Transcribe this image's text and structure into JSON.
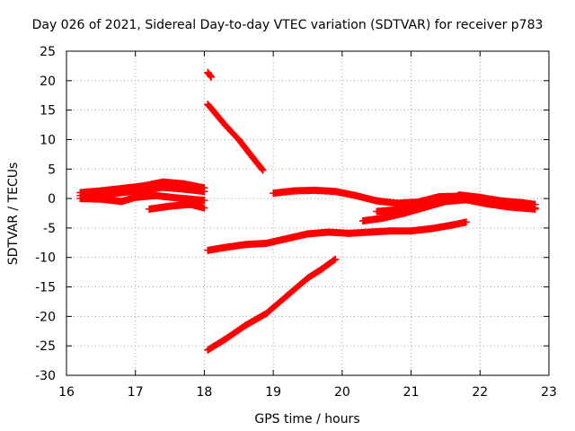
{
  "chart_data": {
    "type": "scatter",
    "title": "Day 026 of 2021, Sidereal Day-to-day VTEC variation (SDTVAR) for receiver p783",
    "xlabel": "GPS time / hours",
    "ylabel": "SDTVAR / TECUs",
    "xlim": [
      16,
      23
    ],
    "ylim": [
      -30,
      25
    ],
    "xticks": [
      "16",
      "17",
      "18",
      "19",
      "20",
      "21",
      "22",
      "23"
    ],
    "yticks": [
      "25",
      "20",
      "15",
      "10",
      "5",
      "0",
      "-5",
      "-10",
      "-15",
      "-20",
      "-25",
      "-30"
    ],
    "grid": true,
    "marker": "+",
    "color": "#ff0000",
    "series": [
      {
        "x": [
          16.2,
          16.5,
          16.8,
          17.1,
          17.4,
          17.7,
          18.0
        ],
        "y": [
          1.0,
          1.3,
          1.7,
          2.1,
          2.8,
          2.5,
          1.8
        ]
      },
      {
        "x": [
          16.2,
          16.5,
          16.8,
          17.1,
          17.4,
          17.7,
          18.0
        ],
        "y": [
          0.5,
          0.5,
          1.0,
          1.4,
          1.9,
          1.6,
          1.2
        ]
      },
      {
        "x": [
          16.2,
          16.5,
          16.8,
          17.0,
          17.3,
          17.6,
          18.0
        ],
        "y": [
          0.0,
          -0.1,
          -0.5,
          0.2,
          0.5,
          0.1,
          -0.3
        ]
      },
      {
        "x": [
          17.2,
          17.5,
          17.8,
          18.0
        ],
        "y": [
          -1.8,
          -1.3,
          -1.0,
          -1.6
        ]
      },
      {
        "x": [
          18.05,
          18.1
        ],
        "y": [
          21.4,
          20.6
        ]
      },
      {
        "x": [
          18.05,
          18.3,
          18.5,
          18.7,
          18.85
        ],
        "y": [
          16.0,
          12.5,
          10.0,
          7.0,
          4.8
        ]
      },
      {
        "x": [
          18.05,
          18.3,
          18.6,
          18.9,
          19.2,
          19.5,
          19.8,
          20.1,
          20.4,
          20.7,
          21.0,
          21.3,
          21.6,
          21.8
        ],
        "y": [
          -8.8,
          -8.3,
          -7.8,
          -7.6,
          -6.8,
          -6.0,
          -5.7,
          -5.9,
          -5.7,
          -5.5,
          -5.5,
          -5.1,
          -4.5,
          -4.0
        ]
      },
      {
        "x": [
          18.05,
          18.3,
          18.6,
          18.9,
          19.2,
          19.5,
          19.7,
          19.9
        ],
        "y": [
          -25.7,
          -23.9,
          -21.5,
          -19.5,
          -16.5,
          -13.5,
          -12.0,
          -10.3
        ]
      },
      {
        "x": [
          19.0,
          19.3,
          19.6,
          19.9,
          20.2,
          20.5,
          20.8,
          21.1,
          21.4,
          21.7,
          22.0,
          22.3,
          22.6,
          22.8
        ],
        "y": [
          0.9,
          1.3,
          1.4,
          1.2,
          0.5,
          -0.4,
          -0.8,
          -0.6,
          0.3,
          0.4,
          0.0,
          -0.4,
          -0.7,
          -1.0
        ]
      },
      {
        "x": [
          20.3,
          20.6,
          20.9,
          21.2,
          21.5,
          21.8,
          22.1,
          22.4,
          22.7,
          22.8
        ],
        "y": [
          -3.8,
          -3.3,
          -2.5,
          -1.5,
          -0.5,
          -0.2,
          -0.9,
          -1.4,
          -1.7,
          -1.8
        ]
      },
      {
        "x": [
          20.5,
          20.8,
          21.1,
          21.4,
          21.7,
          22.0,
          22.3,
          22.6,
          22.8
        ],
        "y": [
          -2.2,
          -1.9,
          -1.3,
          -0.8,
          0.6,
          0.2,
          -0.4,
          -1.2,
          -1.6
        ]
      }
    ]
  }
}
